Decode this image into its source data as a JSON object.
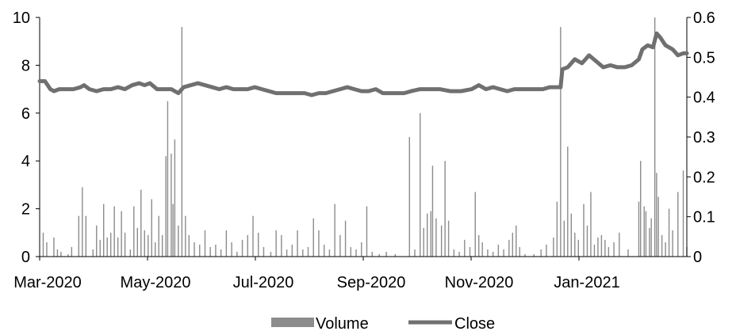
{
  "chart_data": {
    "type": "bar+line",
    "x_ticks": [
      "Mar-2020",
      "May-2020",
      "Jul-2020",
      "Sep-2020",
      "Nov-2020",
      "Jan-2021"
    ],
    "x_range": [
      "2020-03-01",
      "2021-02-28"
    ],
    "y_left": {
      "min": 0,
      "max": 10,
      "ticks": [
        "0",
        "2",
        "4",
        "6",
        "8",
        "10"
      ]
    },
    "y_right": {
      "min": 0,
      "max": 0.6,
      "ticks": [
        "0",
        "0.1",
        "0.2",
        "0.3",
        "0.4",
        "0.5",
        "0.6"
      ]
    },
    "series": [
      {
        "name": "Volume",
        "kind": "bar",
        "axis": "left",
        "color": "#8c8c8c",
        "points": [
          [
            "2020-03-03",
            1.0
          ],
          [
            "2020-03-05",
            0.6
          ],
          [
            "2020-03-09",
            0.8
          ],
          [
            "2020-03-11",
            0.3
          ],
          [
            "2020-03-13",
            0.2
          ],
          [
            "2020-03-17",
            0.1
          ],
          [
            "2020-03-19",
            0.4
          ],
          [
            "2020-03-23",
            1.7
          ],
          [
            "2020-03-25",
            2.9
          ],
          [
            "2020-03-27",
            1.7
          ],
          [
            "2020-03-31",
            0.3
          ],
          [
            "2020-04-02",
            1.3
          ],
          [
            "2020-04-04",
            0.7
          ],
          [
            "2020-04-06",
            2.2
          ],
          [
            "2020-04-08",
            0.8
          ],
          [
            "2020-04-10",
            1.0
          ],
          [
            "2020-04-12",
            2.1
          ],
          [
            "2020-04-14",
            0.8
          ],
          [
            "2020-04-16",
            1.9
          ],
          [
            "2020-04-18",
            1.0
          ],
          [
            "2020-04-21",
            0.3
          ],
          [
            "2020-04-23",
            2.1
          ],
          [
            "2020-04-25",
            1.2
          ],
          [
            "2020-04-27",
            2.8
          ],
          [
            "2020-04-29",
            1.1
          ],
          [
            "2020-05-01",
            0.9
          ],
          [
            "2020-05-03",
            2.4
          ],
          [
            "2020-05-05",
            0.6
          ],
          [
            "2020-05-07",
            1.7
          ],
          [
            "2020-05-09",
            0.9
          ],
          [
            "2020-05-11",
            4.2
          ],
          [
            "2020-05-12",
            6.5
          ],
          [
            "2020-05-14",
            4.3
          ],
          [
            "2020-05-15",
            2.2
          ],
          [
            "2020-05-16",
            4.9
          ],
          [
            "2020-05-18",
            1.3
          ],
          [
            "2020-05-20",
            9.6
          ],
          [
            "2020-05-22",
            1.7
          ],
          [
            "2020-05-24",
            0.9
          ],
          [
            "2020-05-27",
            0.6
          ],
          [
            "2020-05-30",
            0.5
          ],
          [
            "2020-06-02",
            1.1
          ],
          [
            "2020-06-05",
            0.4
          ],
          [
            "2020-06-08",
            0.5
          ],
          [
            "2020-06-11",
            0.3
          ],
          [
            "2020-06-14",
            1.1
          ],
          [
            "2020-06-17",
            0.6
          ],
          [
            "2020-06-20",
            0.2
          ],
          [
            "2020-06-23",
            0.7
          ],
          [
            "2020-06-26",
            0.9
          ],
          [
            "2020-06-29",
            1.7
          ],
          [
            "2020-07-02",
            1.0
          ],
          [
            "2020-07-05",
            0.4
          ],
          [
            "2020-07-09",
            0.2
          ],
          [
            "2020-07-12",
            1.1
          ],
          [
            "2020-07-15",
            0.9
          ],
          [
            "2020-07-18",
            0.3
          ],
          [
            "2020-07-21",
            0.5
          ],
          [
            "2020-07-24",
            1.1
          ],
          [
            "2020-07-27",
            0.3
          ],
          [
            "2020-07-30",
            0.4
          ],
          [
            "2020-08-02",
            1.6
          ],
          [
            "2020-08-05",
            1.1
          ],
          [
            "2020-08-08",
            0.5
          ],
          [
            "2020-08-11",
            0.3
          ],
          [
            "2020-08-14",
            2.2
          ],
          [
            "2020-08-17",
            0.9
          ],
          [
            "2020-08-20",
            1.5
          ],
          [
            "2020-08-23",
            0.4
          ],
          [
            "2020-08-26",
            0.3
          ],
          [
            "2020-08-29",
            0.6
          ],
          [
            "2020-09-01",
            2.1
          ],
          [
            "2020-09-04",
            0.2
          ],
          [
            "2020-09-08",
            0.1
          ],
          [
            "2020-09-12",
            0.2
          ],
          [
            "2020-09-17",
            0.1
          ],
          [
            "2020-09-25",
            5.0
          ],
          [
            "2020-09-28",
            0.3
          ],
          [
            "2020-10-01",
            6.0
          ],
          [
            "2020-10-03",
            1.2
          ],
          [
            "2020-10-05",
            1.8
          ],
          [
            "2020-10-07",
            1.9
          ],
          [
            "2020-10-08",
            3.8
          ],
          [
            "2020-10-10",
            1.6
          ],
          [
            "2020-10-13",
            1.3
          ],
          [
            "2020-10-15",
            4.0
          ],
          [
            "2020-10-17",
            1.5
          ],
          [
            "2020-10-20",
            0.3
          ],
          [
            "2020-10-23",
            0.2
          ],
          [
            "2020-10-26",
            0.7
          ],
          [
            "2020-10-29",
            0.4
          ],
          [
            "2020-11-01",
            2.7
          ],
          [
            "2020-11-03",
            0.9
          ],
          [
            "2020-11-05",
            0.6
          ],
          [
            "2020-11-08",
            0.3
          ],
          [
            "2020-11-11",
            0.2
          ],
          [
            "2020-11-14",
            0.5
          ],
          [
            "2020-11-17",
            0.3
          ],
          [
            "2020-11-20",
            0.7
          ],
          [
            "2020-11-22",
            1.0
          ],
          [
            "2020-11-24",
            1.3
          ],
          [
            "2020-11-26",
            0.4
          ],
          [
            "2020-11-29",
            0.1
          ],
          [
            "2020-12-04",
            0.1
          ],
          [
            "2020-12-08",
            0.3
          ],
          [
            "2020-12-11",
            0.5
          ],
          [
            "2020-12-15",
            0.8
          ],
          [
            "2020-12-17",
            2.3
          ],
          [
            "2020-12-19",
            9.6
          ],
          [
            "2020-12-21",
            1.5
          ],
          [
            "2020-12-23",
            4.6
          ],
          [
            "2020-12-25",
            1.8
          ],
          [
            "2020-12-27",
            1.0
          ],
          [
            "2020-12-29",
            0.7
          ],
          [
            "2021-01-01",
            2.2
          ],
          [
            "2021-01-03",
            1.3
          ],
          [
            "2021-01-05",
            2.7
          ],
          [
            "2021-01-07",
            0.5
          ],
          [
            "2021-01-09",
            0.8
          ],
          [
            "2021-01-11",
            0.9
          ],
          [
            "2021-01-13",
            0.7
          ],
          [
            "2021-01-15",
            0.4
          ],
          [
            "2021-01-18",
            0.6
          ],
          [
            "2021-01-21",
            1.0
          ],
          [
            "2021-01-26",
            0.3
          ],
          [
            "2021-02-01",
            2.3
          ],
          [
            "2021-02-02",
            4.0
          ],
          [
            "2021-02-04",
            2.1
          ],
          [
            "2021-02-05",
            1.9
          ],
          [
            "2021-02-07",
            1.2
          ],
          [
            "2021-02-08",
            1.6
          ],
          [
            "2021-02-10",
            10.0
          ],
          [
            "2021-02-11",
            3.5
          ],
          [
            "2021-02-12",
            2.5
          ],
          [
            "2021-02-14",
            0.9
          ],
          [
            "2021-02-16",
            0.6
          ],
          [
            "2021-02-18",
            2.0
          ],
          [
            "2021-02-20",
            1.1
          ],
          [
            "2021-02-23",
            2.7
          ],
          [
            "2021-02-26",
            3.6
          ],
          [
            "2021-02-28",
            0.4
          ]
        ]
      },
      {
        "name": "Close",
        "kind": "line",
        "axis": "right",
        "color": "#707070",
        "points": [
          [
            "2020-03-01",
            0.44
          ],
          [
            "2020-03-04",
            0.44
          ],
          [
            "2020-03-07",
            0.42
          ],
          [
            "2020-03-09",
            0.415
          ],
          [
            "2020-03-12",
            0.42
          ],
          [
            "2020-03-16",
            0.42
          ],
          [
            "2020-03-20",
            0.42
          ],
          [
            "2020-03-24",
            0.425
          ],
          [
            "2020-03-26",
            0.43
          ],
          [
            "2020-03-29",
            0.42
          ],
          [
            "2020-04-02",
            0.415
          ],
          [
            "2020-04-06",
            0.42
          ],
          [
            "2020-04-10",
            0.42
          ],
          [
            "2020-04-14",
            0.425
          ],
          [
            "2020-04-18",
            0.42
          ],
          [
            "2020-04-22",
            0.43
          ],
          [
            "2020-04-26",
            0.435
          ],
          [
            "2020-04-29",
            0.43
          ],
          [
            "2020-05-02",
            0.435
          ],
          [
            "2020-05-06",
            0.42
          ],
          [
            "2020-05-10",
            0.42
          ],
          [
            "2020-05-14",
            0.42
          ],
          [
            "2020-05-18",
            0.41
          ],
          [
            "2020-05-21",
            0.425
          ],
          [
            "2020-05-25",
            0.43
          ],
          [
            "2020-05-29",
            0.435
          ],
          [
            "2020-06-02",
            0.43
          ],
          [
            "2020-06-06",
            0.425
          ],
          [
            "2020-06-10",
            0.42
          ],
          [
            "2020-06-14",
            0.425
          ],
          [
            "2020-06-18",
            0.42
          ],
          [
            "2020-06-22",
            0.42
          ],
          [
            "2020-06-26",
            0.42
          ],
          [
            "2020-06-30",
            0.425
          ],
          [
            "2020-07-04",
            0.42
          ],
          [
            "2020-07-08",
            0.415
          ],
          [
            "2020-07-12",
            0.41
          ],
          [
            "2020-07-16",
            0.41
          ],
          [
            "2020-07-20",
            0.41
          ],
          [
            "2020-07-24",
            0.41
          ],
          [
            "2020-07-28",
            0.41
          ],
          [
            "2020-08-01",
            0.405
          ],
          [
            "2020-08-05",
            0.41
          ],
          [
            "2020-08-09",
            0.41
          ],
          [
            "2020-08-13",
            0.415
          ],
          [
            "2020-08-17",
            0.42
          ],
          [
            "2020-08-21",
            0.425
          ],
          [
            "2020-08-25",
            0.42
          ],
          [
            "2020-08-29",
            0.415
          ],
          [
            "2020-09-02",
            0.415
          ],
          [
            "2020-09-06",
            0.42
          ],
          [
            "2020-09-10",
            0.41
          ],
          [
            "2020-09-14",
            0.41
          ],
          [
            "2020-09-18",
            0.41
          ],
          [
            "2020-09-22",
            0.41
          ],
          [
            "2020-09-26",
            0.415
          ],
          [
            "2020-10-01",
            0.42
          ],
          [
            "2020-10-06",
            0.42
          ],
          [
            "2020-10-12",
            0.42
          ],
          [
            "2020-10-18",
            0.415
          ],
          [
            "2020-10-24",
            0.415
          ],
          [
            "2020-10-30",
            0.42
          ],
          [
            "2020-11-03",
            0.43
          ],
          [
            "2020-11-07",
            0.42
          ],
          [
            "2020-11-11",
            0.425
          ],
          [
            "2020-11-15",
            0.42
          ],
          [
            "2020-11-19",
            0.415
          ],
          [
            "2020-11-23",
            0.42
          ],
          [
            "2020-11-27",
            0.42
          ],
          [
            "2020-12-01",
            0.42
          ],
          [
            "2020-12-05",
            0.42
          ],
          [
            "2020-12-09",
            0.42
          ],
          [
            "2020-12-13",
            0.425
          ],
          [
            "2020-12-17",
            0.425
          ],
          [
            "2020-12-19",
            0.425
          ],
          [
            "2020-12-20",
            0.47
          ],
          [
            "2020-12-23",
            0.475
          ],
          [
            "2020-12-27",
            0.495
          ],
          [
            "2020-12-31",
            0.485
          ],
          [
            "2021-01-04",
            0.505
          ],
          [
            "2021-01-08",
            0.49
          ],
          [
            "2021-01-12",
            0.475
          ],
          [
            "2021-01-16",
            0.48
          ],
          [
            "2021-01-20",
            0.475
          ],
          [
            "2021-01-24",
            0.475
          ],
          [
            "2021-01-28",
            0.48
          ],
          [
            "2021-02-01",
            0.495
          ],
          [
            "2021-02-03",
            0.52
          ],
          [
            "2021-02-06",
            0.53
          ],
          [
            "2021-02-09",
            0.525
          ],
          [
            "2021-02-11",
            0.56
          ],
          [
            "2021-02-13",
            0.55
          ],
          [
            "2021-02-16",
            0.53
          ],
          [
            "2021-02-20",
            0.52
          ],
          [
            "2021-02-23",
            0.505
          ],
          [
            "2021-02-26",
            0.51
          ],
          [
            "2021-02-28",
            0.51
          ]
        ]
      }
    ],
    "legend": {
      "placement": "bottom-center",
      "entries": [
        "Volume",
        "Close"
      ]
    },
    "grid": false
  }
}
